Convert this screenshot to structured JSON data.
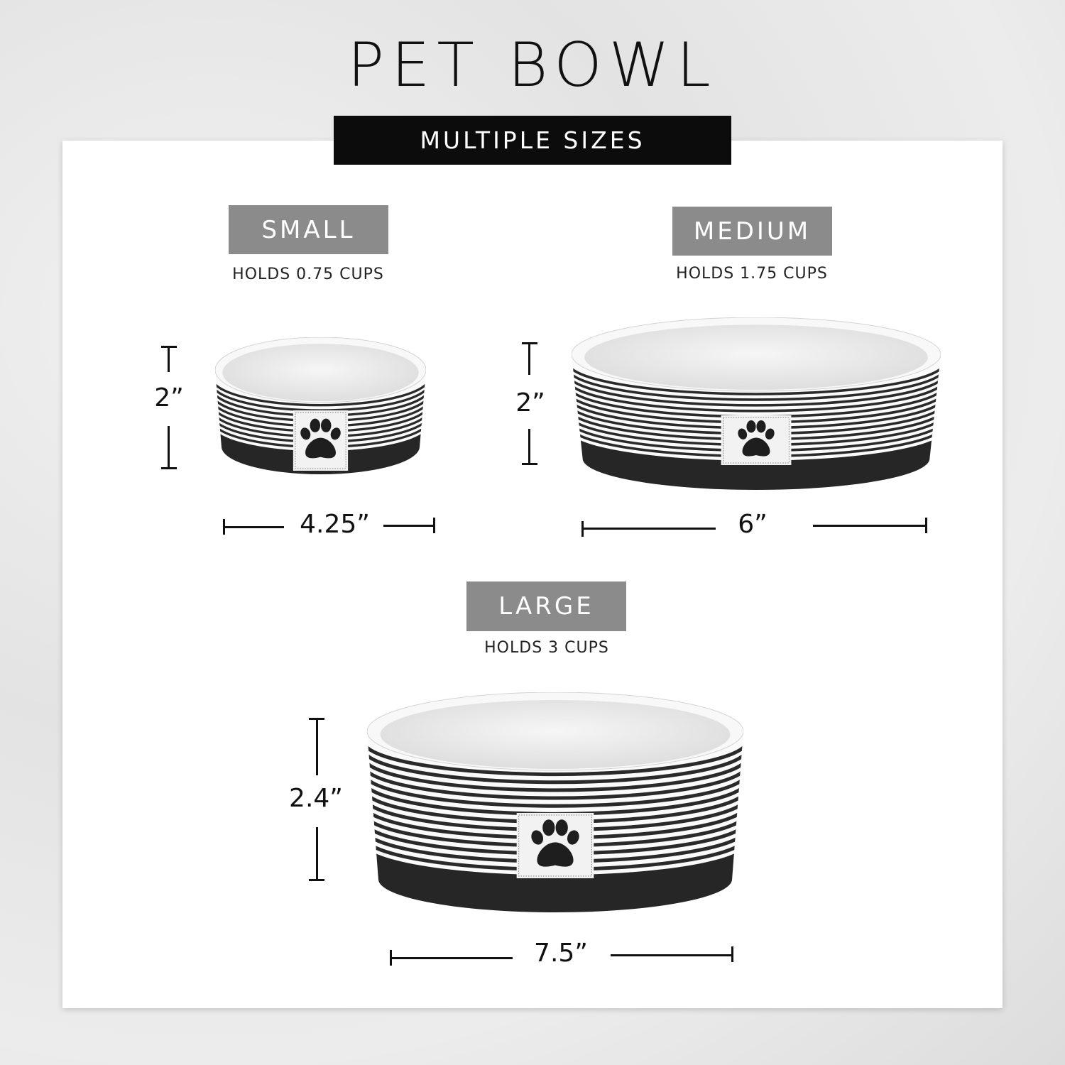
{
  "title": "PET BOWL",
  "subtitle": "MULTIPLE SIZES",
  "sizes": [
    {
      "name": "SMALL",
      "capacity": "HOLDS 0.75 CUPS",
      "height": "2”",
      "width": "4.25”"
    },
    {
      "name": "MEDIUM",
      "capacity": "HOLDS 1.75 CUPS",
      "height": "2”",
      "width": "6”"
    },
    {
      "name": "LARGE",
      "capacity": "HOLDS 3 CUPS",
      "height": "2.4”",
      "width": "7.5”"
    }
  ],
  "colors": {
    "badge": "#8b8b8b",
    "banner": "#0c0c0c",
    "stripe": "#2a2a2a"
  },
  "icons": [
    "paw-print-icon"
  ]
}
